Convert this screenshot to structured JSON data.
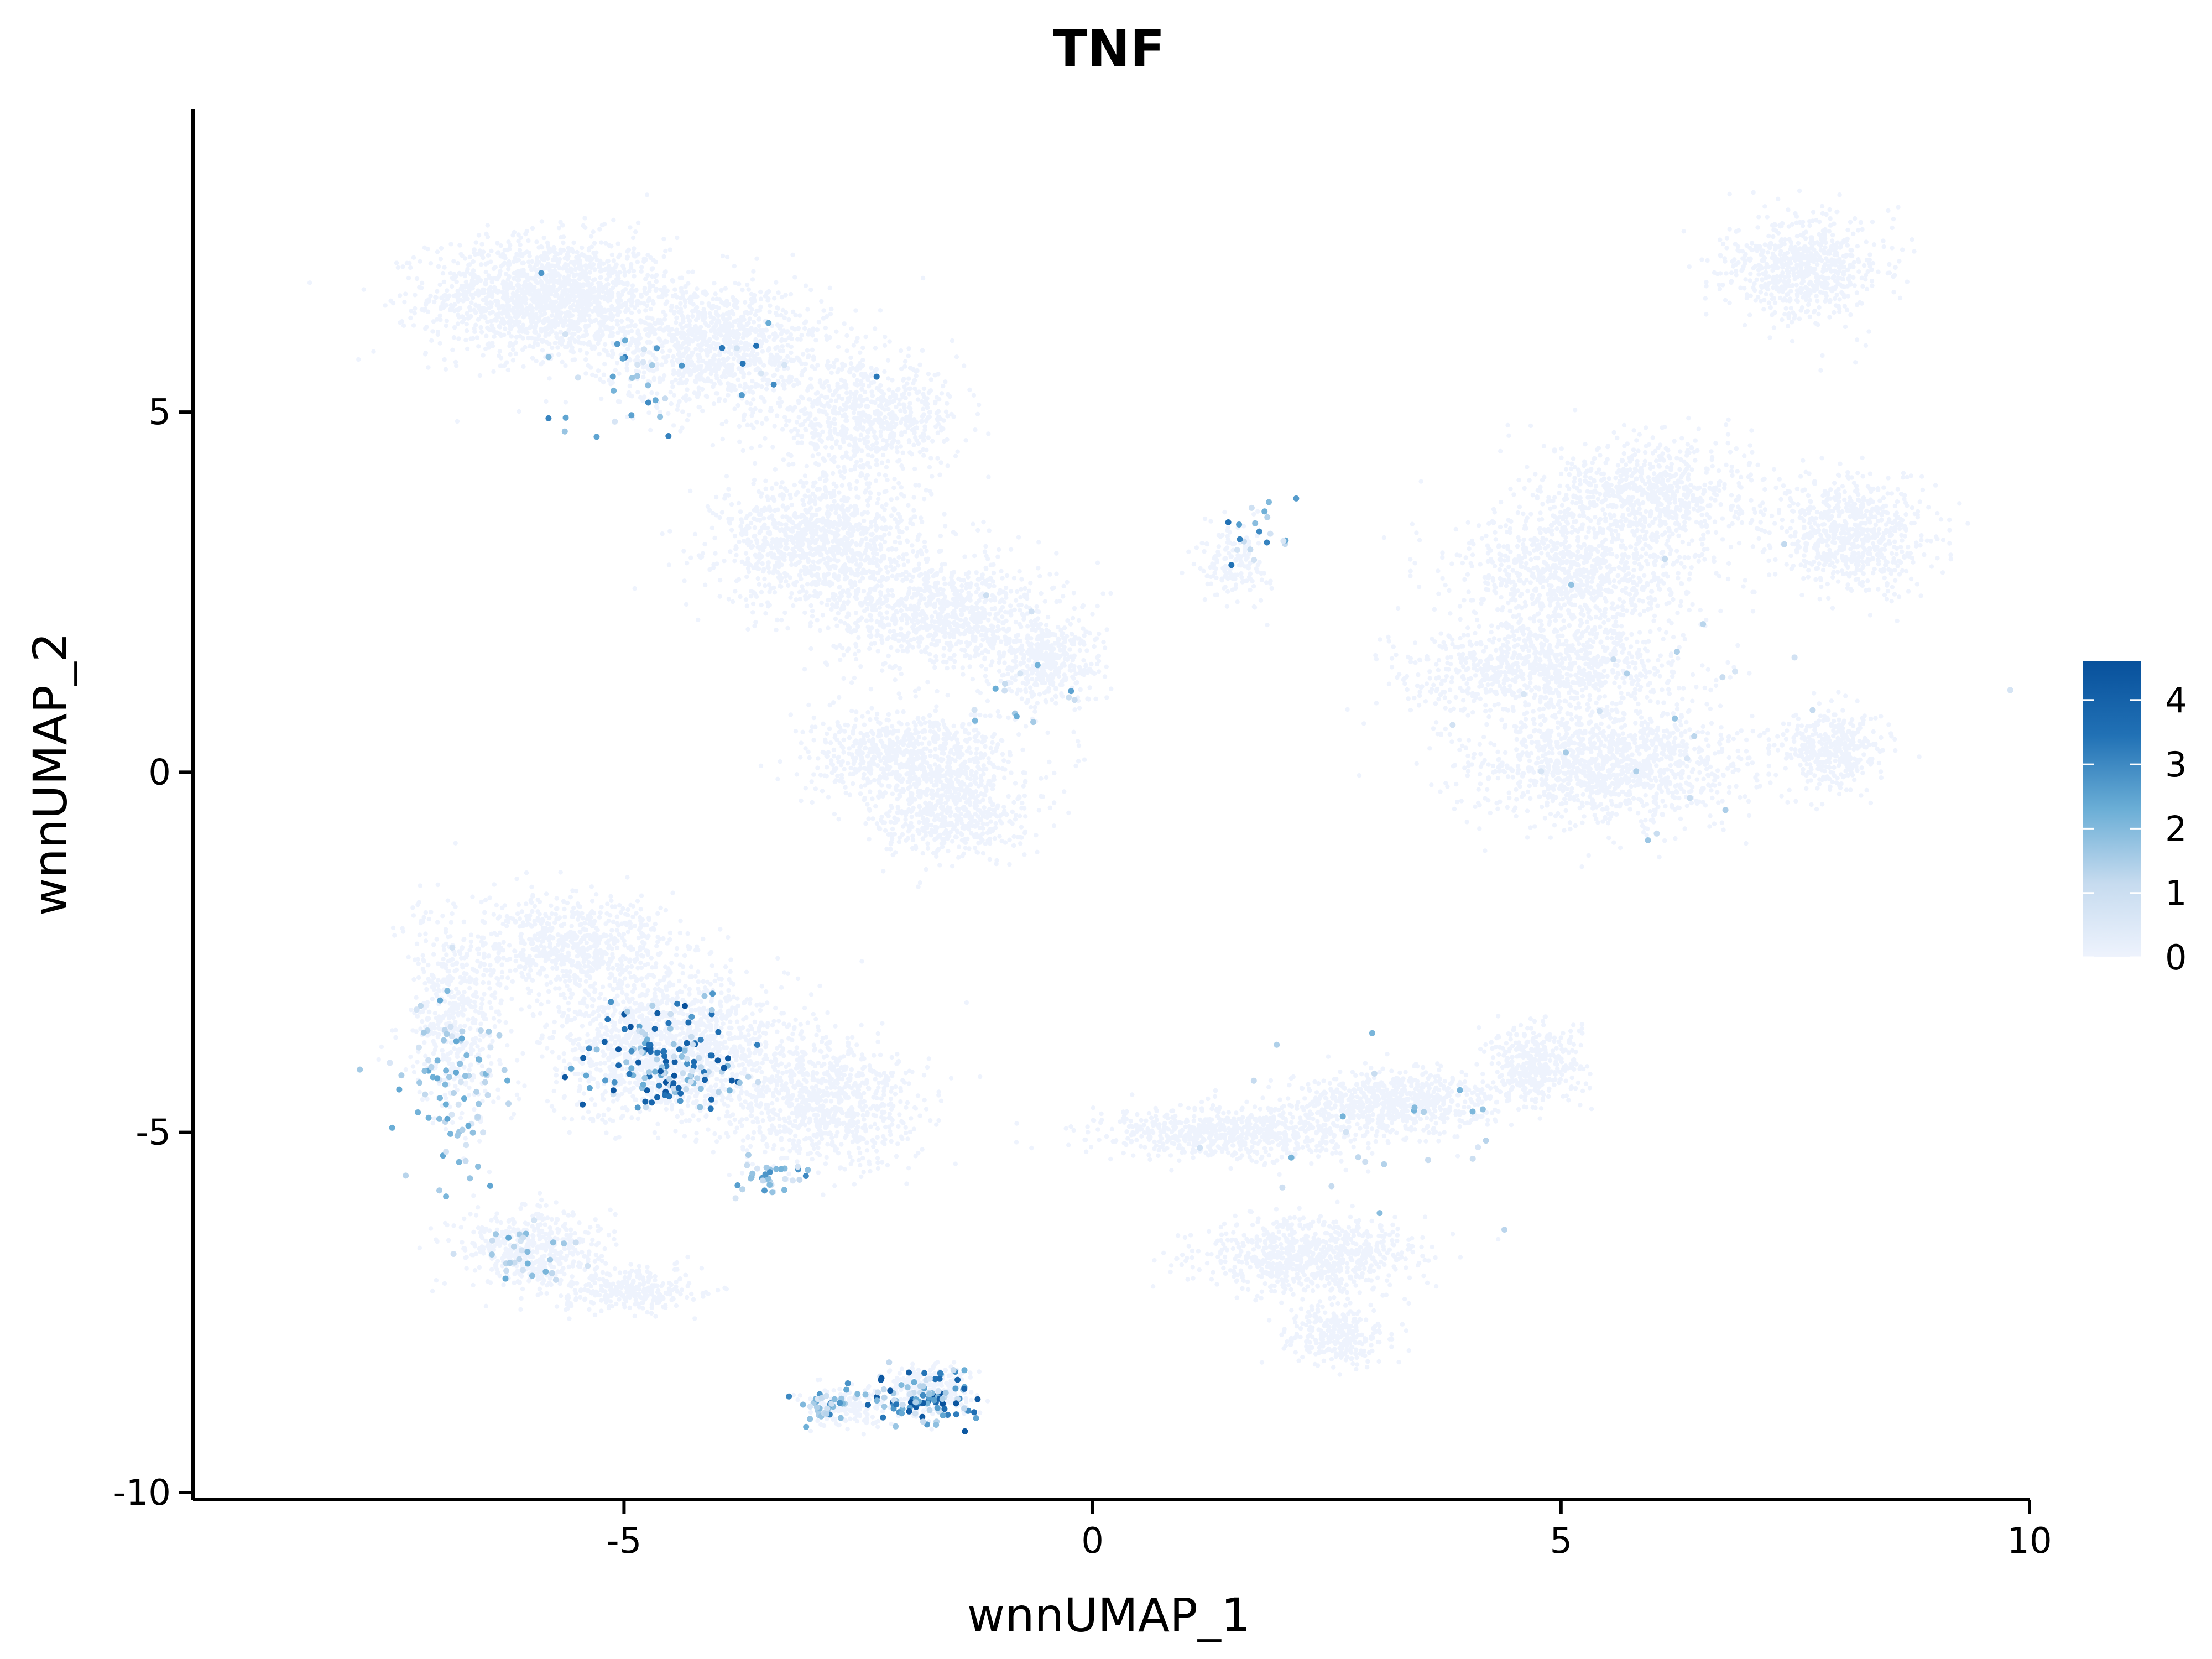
{
  "chart_data": {
    "type": "scatter",
    "title": "TNF",
    "xlabel": "wnnUMAP_1",
    "ylabel": "wnnUMAP_2",
    "xlim": [
      -9.6,
      10
    ],
    "ylim": [
      -10.1,
      9.2
    ],
    "x_ticks": [
      -5,
      0,
      5,
      10
    ],
    "x_tick_labels": [
      "-5",
      "0",
      "5",
      "10"
    ],
    "y_ticks": [
      -10,
      -5,
      0,
      5
    ],
    "y_tick_labels": [
      "-10",
      "-5",
      "0",
      "5"
    ],
    "grid": false,
    "legend": {
      "position": "right",
      "type": "colorbar",
      "min": 0,
      "max": 4.6,
      "ticks": [
        0,
        1,
        2,
        3,
        4
      ],
      "tick_labels": [
        "0",
        "1",
        "2",
        "3",
        "4"
      ],
      "low_color": "#eef3fd",
      "high_color": "#08519c"
    },
    "colors": {
      "background_points": "#eef3fd",
      "low": "#c6dbef",
      "mid": "#6baed6",
      "high": "#08519c"
    },
    "clusters": [
      {
        "x": -5.8,
        "y": 6.6,
        "sx": 1.15,
        "sy": 0.75,
        "n": 1600
      },
      {
        "x": -4.0,
        "y": 5.9,
        "sx": 1.1,
        "sy": 0.8,
        "n": 1100
      },
      {
        "x": -2.4,
        "y": 4.9,
        "sx": 0.9,
        "sy": 0.7,
        "n": 700
      },
      {
        "x": -2.9,
        "y": 3.2,
        "sx": 1.0,
        "sy": 0.8,
        "n": 1100
      },
      {
        "x": -1.6,
        "y": 2.2,
        "sx": 1.1,
        "sy": 0.7,
        "n": 900
      },
      {
        "x": -0.5,
        "y": 1.5,
        "sx": 0.55,
        "sy": 0.5,
        "n": 400
      },
      {
        "x": -1.9,
        "y": 0.2,
        "sx": 1.0,
        "sy": 0.6,
        "n": 800
      },
      {
        "x": -1.5,
        "y": -0.6,
        "sx": 0.7,
        "sy": 0.55,
        "n": 500
      },
      {
        "x": 1.5,
        "y": 2.9,
        "sx": 0.35,
        "sy": 0.5,
        "n": 150
      },
      {
        "x": 5.2,
        "y": 2.7,
        "sx": 1.2,
        "sy": 1.0,
        "n": 1100
      },
      {
        "x": 4.8,
        "y": 1.4,
        "sx": 1.3,
        "sy": 0.5,
        "n": 800
      },
      {
        "x": 6.0,
        "y": 3.9,
        "sx": 1.0,
        "sy": 0.7,
        "n": 700
      },
      {
        "x": 7.6,
        "y": 7.0,
        "sx": 0.75,
        "sy": 0.65,
        "n": 700
      },
      {
        "x": 8.1,
        "y": 3.3,
        "sx": 0.75,
        "sy": 0.7,
        "n": 700
      },
      {
        "x": 5.5,
        "y": 0.1,
        "sx": 1.3,
        "sy": 0.75,
        "n": 1300
      },
      {
        "x": 7.9,
        "y": 0.3,
        "sx": 0.5,
        "sy": 0.5,
        "n": 400
      },
      {
        "x": -6.8,
        "y": -3.4,
        "sx": 0.5,
        "sy": 1.3,
        "n": 500
      },
      {
        "x": -5.5,
        "y": -2.4,
        "sx": 1.0,
        "sy": 0.6,
        "n": 700
      },
      {
        "x": -4.5,
        "y": -3.8,
        "sx": 1.1,
        "sy": 0.9,
        "n": 1500
      },
      {
        "x": -2.9,
        "y": -4.6,
        "sx": 0.9,
        "sy": 0.8,
        "n": 900
      },
      {
        "x": -6.0,
        "y": -6.6,
        "sx": 0.7,
        "sy": 0.5,
        "n": 500
      },
      {
        "x": -5.0,
        "y": -7.2,
        "sx": 0.7,
        "sy": 0.3,
        "n": 300
      },
      {
        "x": -2.6,
        "y": -8.8,
        "sx": 0.35,
        "sy": 0.25,
        "n": 150
      },
      {
        "x": -1.7,
        "y": -8.6,
        "sx": 0.45,
        "sy": 0.35,
        "n": 250
      },
      {
        "x": 3.2,
        "y": -4.6,
        "sx": 0.9,
        "sy": 0.4,
        "n": 700
      },
      {
        "x": 4.7,
        "y": -4.1,
        "sx": 0.45,
        "sy": 0.55,
        "n": 400
      },
      {
        "x": 1.5,
        "y": -5.0,
        "sx": 1.3,
        "sy": 0.35,
        "n": 700
      },
      {
        "x": 2.3,
        "y": -6.7,
        "sx": 1.0,
        "sy": 0.45,
        "n": 800
      },
      {
        "x": 2.6,
        "y": -7.8,
        "sx": 0.5,
        "sy": 0.4,
        "n": 300
      }
    ],
    "expressing_regions": [
      {
        "x": -4.5,
        "y": -4.0,
        "sx": 0.7,
        "sy": 0.6,
        "n": 150,
        "max": 4.6
      },
      {
        "x": -6.8,
        "y": -4.5,
        "sx": 0.5,
        "sy": 1.2,
        "n": 90,
        "max": 2.5
      },
      {
        "x": -1.8,
        "y": -8.7,
        "sx": 0.4,
        "sy": 0.3,
        "n": 110,
        "max": 4.6
      },
      {
        "x": -2.8,
        "y": -8.8,
        "sx": 0.25,
        "sy": 0.2,
        "n": 40,
        "max": 3.2
      },
      {
        "x": -3.4,
        "y": -5.6,
        "sx": 0.3,
        "sy": 0.25,
        "n": 35,
        "max": 3.0
      },
      {
        "x": -6.0,
        "y": -6.7,
        "sx": 0.5,
        "sy": 0.3,
        "n": 30,
        "max": 2.5
      },
      {
        "x": -4.5,
        "y": 5.7,
        "sx": 1.4,
        "sy": 0.8,
        "n": 40,
        "max": 3.5
      },
      {
        "x": 1.8,
        "y": 3.3,
        "sx": 0.4,
        "sy": 0.5,
        "n": 20,
        "max": 3.5
      },
      {
        "x": -0.8,
        "y": 1.0,
        "sx": 0.4,
        "sy": 0.8,
        "n": 15,
        "max": 3.0
      },
      {
        "x": 3.0,
        "y": -5.0,
        "sx": 1.2,
        "sy": 1.0,
        "n": 25,
        "max": 2.2
      },
      {
        "x": 6.0,
        "y": 1.0,
        "sx": 2.0,
        "sy": 1.5,
        "n": 25,
        "max": 2.0
      }
    ]
  }
}
